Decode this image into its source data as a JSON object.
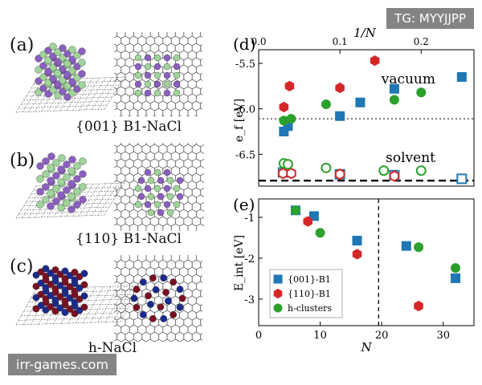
{
  "watermark_top": "TG: MYYJJPP",
  "watermark_bottom": "irr-games.com",
  "panels_left": [
    {
      "label": "(a)",
      "caption": "{001} B1-NaCl"
    },
    {
      "label": "(b)",
      "caption": "{110} B1-NaCl"
    },
    {
      "label": "(c)",
      "caption": "h-NaCl"
    }
  ],
  "colors": {
    "blue": "#1f77b4",
    "red": "#d62728",
    "green": "#2ca02c",
    "purple": "#8a5fbf",
    "lightgreen": "#9fd49a",
    "navy": "#1b2a8c",
    "darkred": "#7a1020"
  },
  "chart_data": [
    {
      "id": "d",
      "type": "scatter",
      "panel_label": "(d)",
      "top_axis_label": "1/N",
      "top_ticks": [
        "0.0",
        "0.1",
        "0.2"
      ],
      "top_tick_values": [
        0.0,
        0.1,
        0.2
      ],
      "xlim_top": [
        0,
        0.265
      ],
      "ylabel": "e_f [eV]",
      "ylim": [
        -6.85,
        -5.35
      ],
      "yticks": [
        -5.5,
        -6.0,
        -6.5
      ],
      "ytick_labels": [
        "-5.5",
        "-6.0",
        "-6.5"
      ],
      "annotations": [
        "vacuum",
        "solvent"
      ],
      "reference_lines": [
        {
          "y": -6.11,
          "style": "dotted",
          "color": "#777777"
        },
        {
          "y": -6.79,
          "style": "dashed",
          "color": "#000000"
        }
      ],
      "series": [
        {
          "name": "{001}-B1 vacuum",
          "marker": "square",
          "color": "#1f77b4",
          "filled": true,
          "x": [
            0.031,
            0.036,
            0.1,
            0.125,
            0.167,
            0.25
          ],
          "y": [
            -6.25,
            -6.19,
            -6.08,
            -5.93,
            -5.78,
            -5.65
          ]
        },
        {
          "name": "{110}-B1 vacuum",
          "marker": "hexagon",
          "color": "#d62728",
          "filled": true,
          "x": [
            0.031,
            0.038,
            0.1,
            0.143
          ],
          "y": [
            -5.98,
            -5.75,
            -5.77,
            -5.47
          ]
        },
        {
          "name": "h-clusters vacuum",
          "marker": "circle",
          "color": "#2ca02c",
          "filled": true,
          "x": [
            0.031,
            0.04,
            0.083,
            0.167,
            0.2
          ],
          "y": [
            -6.13,
            -6.11,
            -5.95,
            -5.9,
            -5.82
          ]
        },
        {
          "name": "{001}-B1 solvent",
          "marker": "square",
          "color": "#1f77b4",
          "filled": false,
          "x": [
            0.03,
            0.1,
            0.167,
            0.25
          ],
          "y": [
            -6.7,
            -6.72,
            -6.73,
            -6.77
          ]
        },
        {
          "name": "{110}-B1 solvent",
          "marker": "hexagon",
          "color": "#d62728",
          "filled": false,
          "x": [
            0.03,
            0.04,
            0.1,
            0.167
          ],
          "y": [
            -6.71,
            -6.71,
            -6.72,
            -6.74
          ]
        },
        {
          "name": "h-clusters solvent",
          "marker": "circle",
          "color": "#2ca02c",
          "filled": false,
          "x": [
            0.031,
            0.036,
            0.083,
            0.154,
            0.2
          ],
          "y": [
            -6.6,
            -6.61,
            -6.65,
            -6.68,
            -6.68
          ]
        }
      ]
    },
    {
      "id": "e",
      "type": "scatter",
      "panel_label": "(e)",
      "xlabel": "N",
      "ylabel": "E_int [eV]",
      "xlim": [
        0,
        35
      ],
      "xticks": [
        0,
        10,
        20,
        30
      ],
      "ylim": [
        -3.65,
        -0.55
      ],
      "yticks": [
        -1,
        -2,
        -3
      ],
      "reference_lines": [
        {
          "x": 19.5,
          "style": "dashed",
          "color": "#000000"
        }
      ],
      "legend": {
        "position": "bottom-left",
        "entries": [
          "{001}-B1",
          "{110}-B1",
          "h-clusters"
        ]
      },
      "series": [
        {
          "name": "{001}-B1",
          "marker": "square",
          "color": "#1f77b4",
          "x": [
            6,
            9,
            16,
            24,
            32
          ],
          "y": [
            -0.83,
            -0.97,
            -1.57,
            -1.7,
            -2.49
          ]
        },
        {
          "name": "{110}-B1",
          "marker": "hexagon",
          "color": "#d62728",
          "x": [
            8,
            16,
            26
          ],
          "y": [
            -1.1,
            -1.9,
            -3.17
          ]
        },
        {
          "name": "h-clusters",
          "marker": "circle",
          "color": "#2ca02c",
          "x": [
            6,
            10,
            26,
            32
          ],
          "y": [
            -0.83,
            -1.38,
            -1.73,
            -2.24
          ]
        }
      ]
    }
  ]
}
